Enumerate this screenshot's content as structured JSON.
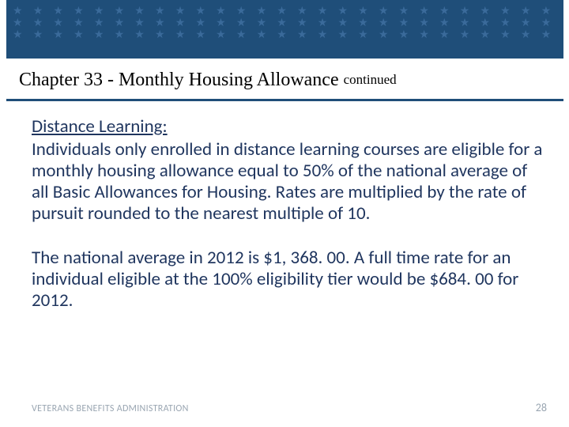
{
  "colors": {
    "header_bg": "#1f4e79",
    "star_color": "#3a6a9a",
    "body_text": "#1f355e",
    "footer_text": "#9aa6b2",
    "page_bg": "#ffffff"
  },
  "header": {
    "title_main": "Chapter 33 - Monthly Housing Allowance",
    "title_continued": "continued",
    "star_char": "★",
    "star_rows": 3,
    "stars_per_row": 40
  },
  "body": {
    "subheading": "Distance Learning:",
    "paragraph1": "Individuals only enrolled in distance learning courses are eligible for a monthly housing allowance equal to 50% of the national average of all Basic Allowances for Housing. Rates are multiplied by the rate of pursuit rounded to the nearest multiple of 10.",
    "paragraph2": "The national average in 2012 is $1, 368. 00. A full time rate for an individual eligible at the 100% eligibility tier would be $684. 00 for 2012."
  },
  "footer": {
    "left": "VETERANS BENEFITS ADMINISTRATION",
    "page_number": "28"
  }
}
